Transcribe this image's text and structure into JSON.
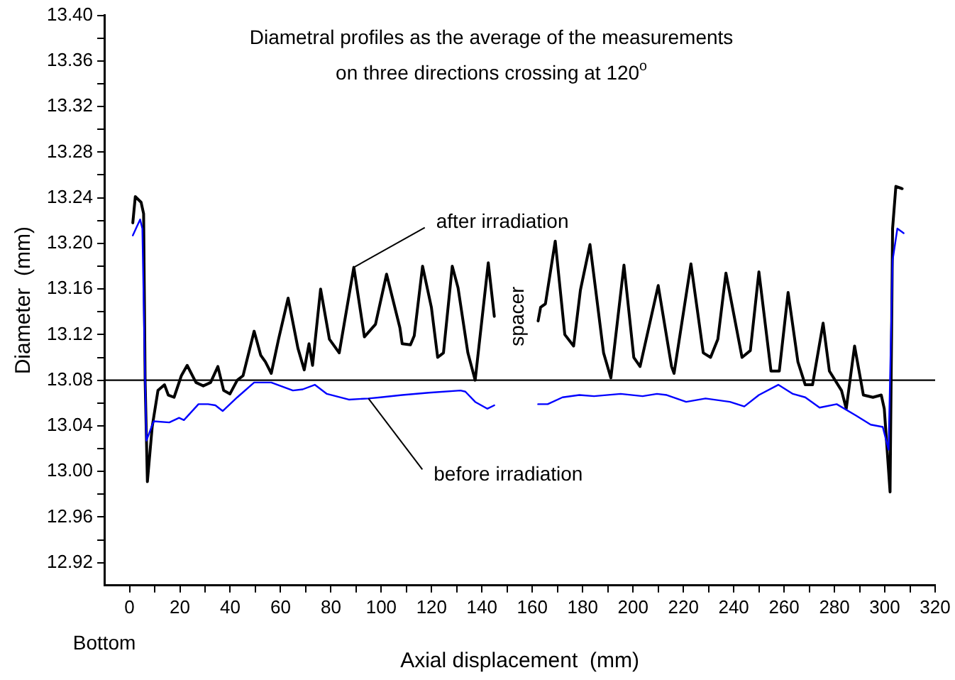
{
  "chart_data": {
    "type": "line",
    "title": "Diametral profiles as the average of the measurements\non three directions crossing at 120$^{o}$",
    "xlabel": "Axial displacement  (mm)",
    "ylabel": "Diameter  (mm)",
    "xlim": [
      -10,
      320
    ],
    "xticks": [
      0,
      {
        "value": 10,
        "label": null
      },
      20,
      {
        "value": 30,
        "label": null
      },
      40,
      {
        "value": 50,
        "label": null
      },
      60,
      {
        "value": 70,
        "label": null
      },
      80,
      {
        "value": 90,
        "label": null
      },
      100,
      {
        "value": 110,
        "label": null
      },
      120,
      {
        "value": 130,
        "label": null
      },
      140,
      {
        "value": 150,
        "label": null
      },
      160,
      {
        "value": 170,
        "label": null
      },
      180,
      {
        "value": 190,
        "label": null
      },
      200,
      {
        "value": 210,
        "label": null
      },
      220,
      {
        "value": 230,
        "label": null
      },
      240,
      {
        "value": 250,
        "label": null
      },
      260,
      {
        "value": 270,
        "label": null
      },
      280,
      {
        "value": 290,
        "label": null
      },
      300,
      {
        "value": 310,
        "label": null
      },
      320
    ],
    "ylim": [
      12.9,
      13.4
    ],
    "yticks": [
      12.92,
      {
        "value": 12.94,
        "label": null
      },
      12.96,
      {
        "value": 12.98,
        "label": null
      },
      {
        "value": 13.0,
        "label": "13.00"
      },
      {
        "value": 13.02,
        "label": null
      },
      13.04,
      {
        "value": 13.06,
        "label": null
      },
      13.08,
      {
        "value": 13.1,
        "label": null
      },
      13.12,
      {
        "value": 13.14,
        "label": null
      },
      13.16,
      {
        "value": 13.18,
        "label": null
      },
      {
        "value": 13.2,
        "label": "13.20"
      },
      {
        "value": 13.22,
        "label": null
      },
      13.24,
      {
        "value": 13.26,
        "label": null
      },
      13.28,
      {
        "value": 13.3,
        "label": null
      },
      13.32,
      {
        "value": 13.34,
        "label": null
      },
      13.36,
      {
        "value": 13.38,
        "label": null
      },
      {
        "value": 13.4,
        "label": "13.40"
      }
    ],
    "grid": false,
    "legend": false,
    "marker": "none",
    "line_style": "solid",
    "ref_lines": [
      {
        "axis": "y",
        "value": 13.08,
        "color": "#000000"
      }
    ],
    "series": [
      {
        "color": "#000000",
        "x": [
          1.3,
          2.3,
          4.6,
          5.6,
          6.2,
          7.1,
          9.0,
          11.3,
          13.9,
          15.4,
          17.7,
          20.6,
          22.9,
          26.4,
          29.3,
          32.2,
          35.1,
          37.4,
          39.9,
          42.8,
          45.1,
          49.5,
          52.1,
          54.0,
          56.3,
          59.2,
          63.0,
          66.9,
          69.4,
          71.3,
          72.7,
          75.9,
          79.4,
          83.3,
          89.1,
          93.3,
          97.7,
          102.1,
          107.4,
          108.3,
          111.6,
          113.1,
          116.4,
          119.9,
          122.4,
          124.7,
          128.2,
          130.5,
          134.4,
          137.3,
          142.5,
          144.9,
          150,
          162.3,
          163.3,
          165.2,
          169.1,
          172.9,
          176.4,
          179.1,
          182.9,
          188.3,
          191.2,
          196.4,
          200.3,
          202.8,
          210.0,
          215.3,
          216.3,
          223.0,
          227.9,
          230.8,
          233.7,
          236.9,
          243.3,
          246.6,
          250.0,
          254.8,
          258.1,
          261.6,
          265.5,
          268.4,
          271.3,
          275.5,
          278.0,
          282.8,
          284.7,
          288.0,
          291.5,
          295.3,
          298.6,
          299.8,
          302.1,
          303.1,
          304.4,
          306.9
        ],
        "values": [
          13.218,
          13.241,
          13.236,
          13.226,
          13.08,
          12.991,
          13.039,
          13.071,
          13.076,
          13.067,
          13.065,
          13.084,
          13.093,
          13.078,
          13.075,
          13.078,
          13.092,
          13.071,
          13.068,
          13.08,
          13.084,
          13.123,
          13.102,
          13.096,
          13.086,
          13.116,
          13.152,
          13.108,
          13.089,
          13.112,
          13.093,
          13.16,
          13.116,
          13.104,
          13.179,
          13.118,
          13.129,
          13.173,
          13.126,
          13.112,
          13.111,
          13.119,
          13.18,
          13.144,
          13.1,
          13.104,
          13.18,
          13.161,
          13.104,
          13.08,
          13.183,
          13.136,
          null,
          13.132,
          13.144,
          13.147,
          13.202,
          13.12,
          13.11,
          13.159,
          13.199,
          13.104,
          13.082,
          13.181,
          13.1,
          13.092,
          13.163,
          13.092,
          13.086,
          13.182,
          13.104,
          13.1,
          13.116,
          13.174,
          13.1,
          13.106,
          13.175,
          13.088,
          13.088,
          13.157,
          13.096,
          13.076,
          13.076,
          13.13,
          13.088,
          13.071,
          13.055,
          13.11,
          13.067,
          13.065,
          13.067,
          13.055,
          12.982,
          13.213,
          13.25,
          13.248
        ]
      },
      {
        "color": "#0000ff",
        "x": [
          1.3,
          4.2,
          5.1,
          6.2,
          6.7,
          9.6,
          15.8,
          19.7,
          21.6,
          27.4,
          31.2,
          34.1,
          37.0,
          42.8,
          49.5,
          56.3,
          64.9,
          68.8,
          73.6,
          78.4,
          87.1,
          94.9,
          99.7,
          108.3,
          118.9,
          131.5,
          133.4,
          137.3,
          142.1,
          144.9,
          150,
          162.3,
          166.1,
          172.0,
          178.7,
          184.5,
          195.1,
          203.8,
          209.5,
          213.4,
          221.1,
          228.8,
          238.5,
          244.2,
          250.0,
          257.7,
          263.5,
          268.4,
          274.1,
          280.9,
          288.6,
          294.4,
          299.2,
          301.5,
          303.1,
          305.0,
          307.5
        ],
        "values": [
          13.207,
          13.221,
          13.213,
          13.08,
          13.027,
          13.044,
          13.043,
          13.047,
          13.045,
          13.059,
          13.059,
          13.058,
          13.053,
          13.065,
          13.078,
          13.078,
          13.071,
          13.072,
          13.076,
          13.068,
          13.063,
          13.064,
          13.065,
          13.067,
          13.069,
          13.071,
          13.07,
          13.061,
          13.055,
          13.058,
          null,
          13.059,
          13.059,
          13.065,
          13.067,
          13.066,
          13.068,
          13.066,
          13.068,
          13.067,
          13.061,
          13.064,
          13.061,
          13.057,
          13.067,
          13.076,
          13.068,
          13.065,
          13.056,
          13.059,
          13.049,
          13.041,
          13.039,
          13.019,
          13.185,
          13.213,
          13.209
        ]
      }
    ],
    "annotations": [
      {
        "text": "after irradiation",
        "x": 89.1,
        "y": 13.179
      },
      {
        "text": "before irradiation",
        "x": 94.9,
        "y": 13.064
      },
      "spacer",
      "Bottom"
    ]
  }
}
